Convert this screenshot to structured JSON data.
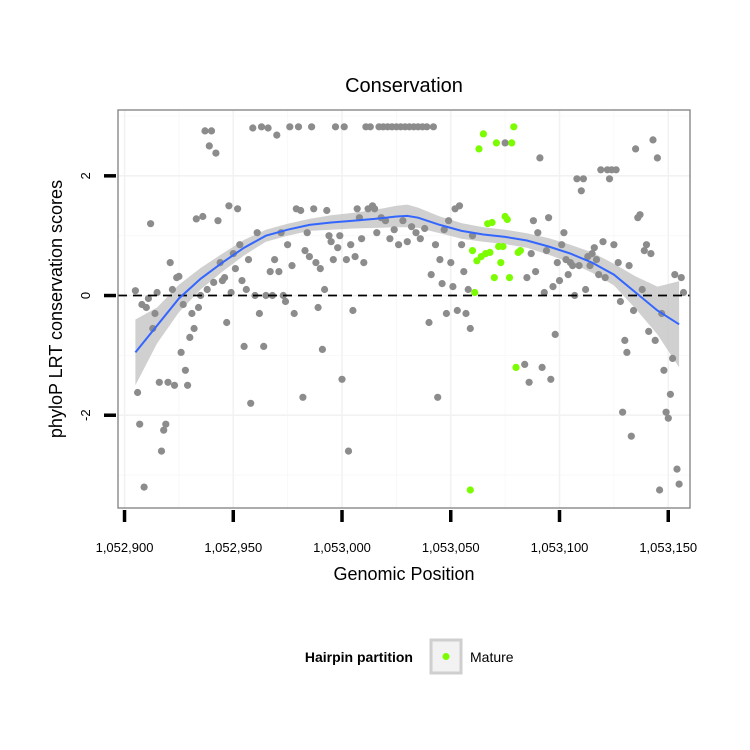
{
  "chart_data": {
    "type": "scatter",
    "title": "Conservation",
    "xlabel": "Genomic Position",
    "ylabel": "phyloP LRT conservation scores",
    "xlim": [
      1052897,
      1053160
    ],
    "ylim": [
      -3.55,
      3.1
    ],
    "x_ticks": [
      1052900,
      1052950,
      1053000,
      1053050,
      1053100,
      1053150
    ],
    "x_tick_labels": [
      "1,052,900",
      "1,052,950",
      "1,053,000",
      "1,053,050",
      "1,053,100",
      "1,053,150"
    ],
    "y_ticks": [
      -2,
      0,
      2
    ],
    "y_tick_labels": [
      "-2",
      "0",
      "2"
    ],
    "grid": true,
    "reference_line": {
      "y": 0,
      "style": "dashed",
      "color": "#000000"
    },
    "legend": {
      "title": "Hairpin partition",
      "placement": "bottom",
      "entries": [
        {
          "label": "Mature",
          "color": "#7CFC00"
        }
      ]
    },
    "colors": {
      "other": "#8c8c8c",
      "mature": "#7CFC00",
      "smooth": "#3366FF",
      "ribbon": "#c8c8c8"
    },
    "series": [
      {
        "name": "Mature",
        "color": "#7CFC00",
        "points": [
          [
            1053059,
            -3.25
          ],
          [
            1053060,
            0.75
          ],
          [
            1053061,
            0.05
          ],
          [
            1053062,
            0.58
          ],
          [
            1053063,
            2.45
          ],
          [
            1053064,
            0.65
          ],
          [
            1053065,
            2.7
          ],
          [
            1053066,
            0.7
          ],
          [
            1053067,
            1.2
          ],
          [
            1053068,
            0.72
          ],
          [
            1053069,
            1.22
          ],
          [
            1053070,
            0.3
          ],
          [
            1053071,
            2.55
          ],
          [
            1053072,
            0.82
          ],
          [
            1053073,
            0.55
          ],
          [
            1053074,
            0.82
          ],
          [
            1053075,
            1.32
          ],
          [
            1053076,
            1.27
          ],
          [
            1053077,
            0.3
          ],
          [
            1053078,
            2.55
          ],
          [
            1053079,
            2.82
          ],
          [
            1053080,
            -1.2
          ],
          [
            1053081,
            0.72
          ],
          [
            1053082,
            0.75
          ]
        ]
      },
      {
        "color": "#8c8c8c",
        "points": [
          [
            1052905,
            0.08
          ],
          [
            1052906,
            -1.62
          ],
          [
            1052907,
            -2.15
          ],
          [
            1052908,
            -0.15
          ],
          [
            1052909,
            -3.2
          ],
          [
            1052910,
            -0.2
          ],
          [
            1052911,
            -0.05
          ],
          [
            1052912,
            1.2
          ],
          [
            1052913,
            -0.55
          ],
          [
            1052914,
            -0.3
          ],
          [
            1052915,
            0.05
          ],
          [
            1052916,
            -1.45
          ],
          [
            1052917,
            -2.6
          ],
          [
            1052918,
            -2.25
          ],
          [
            1052919,
            -2.15
          ],
          [
            1052920,
            -1.45
          ],
          [
            1052921,
            0.55
          ],
          [
            1052922,
            0.1
          ],
          [
            1052923,
            -1.5
          ],
          [
            1052924,
            0.3
          ],
          [
            1052925,
            0.32
          ],
          [
            1052926,
            -0.95
          ],
          [
            1052927,
            -0.15
          ],
          [
            1052928,
            -1.25
          ],
          [
            1052929,
            -1.5
          ],
          [
            1052930,
            -0.7
          ],
          [
            1052931,
            -0.3
          ],
          [
            1052932,
            -0.55
          ],
          [
            1052933,
            1.28
          ],
          [
            1052934,
            -0.2
          ],
          [
            1052935,
            0.0
          ],
          [
            1052936,
            1.32
          ],
          [
            1052937,
            2.75
          ],
          [
            1052938,
            0.1
          ],
          [
            1052939,
            2.5
          ],
          [
            1052940,
            2.75
          ],
          [
            1052941,
            0.22
          ],
          [
            1052942,
            2.38
          ],
          [
            1052943,
            1.25
          ],
          [
            1052944,
            0.55
          ],
          [
            1052945,
            0.25
          ],
          [
            1052946,
            0.3
          ],
          [
            1052947,
            -0.45
          ],
          [
            1052948,
            1.5
          ],
          [
            1052949,
            0.05
          ],
          [
            1052950,
            0.7
          ],
          [
            1052951,
            0.45
          ],
          [
            1052952,
            1.45
          ],
          [
            1052953,
            0.85
          ],
          [
            1052954,
            0.25
          ],
          [
            1052955,
            -0.85
          ],
          [
            1052956,
            0.1
          ],
          [
            1052957,
            0.6
          ],
          [
            1052958,
            -1.8
          ],
          [
            1052959,
            2.8
          ],
          [
            1052960,
            0.0
          ],
          [
            1052961,
            1.05
          ],
          [
            1052962,
            -0.3
          ],
          [
            1052963,
            2.82
          ],
          [
            1052964,
            -0.85
          ],
          [
            1052965,
            0.0
          ],
          [
            1052966,
            2.8
          ],
          [
            1052967,
            0.4
          ],
          [
            1052968,
            0.0
          ],
          [
            1052969,
            0.6
          ],
          [
            1052970,
            2.68
          ],
          [
            1052971,
            0.4
          ],
          [
            1052972,
            1.05
          ],
          [
            1052973,
            0.0
          ],
          [
            1052974,
            -0.1
          ],
          [
            1052975,
            0.85
          ],
          [
            1052976,
            2.82
          ],
          [
            1052977,
            0.5
          ],
          [
            1052978,
            -0.3
          ],
          [
            1052979,
            1.45
          ],
          [
            1052980,
            2.82
          ],
          [
            1052981,
            1.42
          ],
          [
            1052982,
            -1.7
          ],
          [
            1052983,
            0.75
          ],
          [
            1052984,
            1.05
          ],
          [
            1052985,
            0.65
          ],
          [
            1052986,
            2.82
          ],
          [
            1052987,
            1.45
          ],
          [
            1052988,
            0.55
          ],
          [
            1052989,
            -0.2
          ],
          [
            1052990,
            0.45
          ],
          [
            1052991,
            -0.9
          ],
          [
            1052992,
            0.1
          ],
          [
            1052993,
            1.42
          ],
          [
            1052994,
            1.0
          ],
          [
            1052995,
            0.9
          ],
          [
            1052996,
            0.6
          ],
          [
            1052997,
            2.82
          ],
          [
            1052998,
            0.8
          ],
          [
            1052999,
            1.0
          ],
          [
            1053000,
            -1.4
          ],
          [
            1053001,
            2.82
          ],
          [
            1053002,
            0.6
          ],
          [
            1053003,
            -2.6
          ],
          [
            1053004,
            0.85
          ],
          [
            1053005,
            -0.25
          ],
          [
            1053006,
            0.65
          ],
          [
            1053007,
            1.45
          ],
          [
            1053008,
            1.3
          ],
          [
            1053009,
            0.95
          ],
          [
            1053010,
            0.55
          ],
          [
            1053011,
            2.82
          ],
          [
            1053012,
            1.45
          ],
          [
            1053013,
            2.82
          ],
          [
            1053014,
            1.5
          ],
          [
            1053015,
            1.45
          ],
          [
            1053016,
            1.05
          ],
          [
            1053017,
            2.82
          ],
          [
            1053018,
            1.3
          ],
          [
            1053019,
            2.82
          ],
          [
            1053020,
            1.25
          ],
          [
            1053021,
            2.82
          ],
          [
            1053022,
            0.95
          ],
          [
            1053023,
            2.82
          ],
          [
            1053024,
            1.1
          ],
          [
            1053025,
            2.82
          ],
          [
            1053026,
            0.85
          ],
          [
            1053027,
            2.82
          ],
          [
            1053028,
            1.25
          ],
          [
            1053029,
            2.82
          ],
          [
            1053030,
            0.9
          ],
          [
            1053031,
            2.82
          ],
          [
            1053032,
            1.15
          ],
          [
            1053033,
            2.82
          ],
          [
            1053034,
            1.05
          ],
          [
            1053035,
            2.82
          ],
          [
            1053036,
            0.95
          ],
          [
            1053037,
            2.82
          ],
          [
            1053038,
            1.12
          ],
          [
            1053039,
            2.82
          ],
          [
            1053040,
            -0.45
          ],
          [
            1053041,
            0.35
          ],
          [
            1053042,
            2.82
          ],
          [
            1053043,
            0.85
          ],
          [
            1053044,
            -1.7
          ],
          [
            1053045,
            0.6
          ],
          [
            1053046,
            0.2
          ],
          [
            1053047,
            1.1
          ],
          [
            1053048,
            -0.3
          ],
          [
            1053049,
            1.25
          ],
          [
            1053050,
            0.55
          ],
          [
            1053051,
            0.15
          ],
          [
            1053052,
            1.45
          ],
          [
            1053053,
            -0.25
          ],
          [
            1053054,
            1.5
          ],
          [
            1053055,
            0.85
          ],
          [
            1053056,
            0.4
          ],
          [
            1053057,
            -0.3
          ],
          [
            1053058,
            0.1
          ],
          [
            1053059,
            -0.55
          ],
          [
            1053060,
            1.0
          ],
          [
            1053075,
            2.55
          ],
          [
            1053084,
            -1.15
          ],
          [
            1053085,
            0.3
          ],
          [
            1053086,
            -1.45
          ],
          [
            1053087,
            0.7
          ],
          [
            1053088,
            1.25
          ],
          [
            1053089,
            0.4
          ],
          [
            1053090,
            1.05
          ],
          [
            1053091,
            2.3
          ],
          [
            1053092,
            -1.2
          ],
          [
            1053093,
            0.05
          ],
          [
            1053094,
            0.75
          ],
          [
            1053095,
            1.3
          ],
          [
            1053096,
            -1.4
          ],
          [
            1053097,
            0.15
          ],
          [
            1053098,
            -0.65
          ],
          [
            1053099,
            0.55
          ],
          [
            1053100,
            0.25
          ],
          [
            1053101,
            0.85
          ],
          [
            1053102,
            1.05
          ],
          [
            1053103,
            0.6
          ],
          [
            1053104,
            0.35
          ],
          [
            1053105,
            0.55
          ],
          [
            1053106,
            0.5
          ],
          [
            1053107,
            0.0
          ],
          [
            1053108,
            1.95
          ],
          [
            1053109,
            0.5
          ],
          [
            1053110,
            1.75
          ],
          [
            1053111,
            1.95
          ],
          [
            1053112,
            0.1
          ],
          [
            1053113,
            0.65
          ],
          [
            1053114,
            0.5
          ],
          [
            1053115,
            0.7
          ],
          [
            1053116,
            0.8
          ],
          [
            1053117,
            0.6
          ],
          [
            1053118,
            0.35
          ],
          [
            1053119,
            2.1
          ],
          [
            1053120,
            0.9
          ],
          [
            1053121,
            0.3
          ],
          [
            1053122,
            2.1
          ],
          [
            1053123,
            1.95
          ],
          [
            1053124,
            2.1
          ],
          [
            1053125,
            0.85
          ],
          [
            1053126,
            2.1
          ],
          [
            1053127,
            0.55
          ],
          [
            1053128,
            -0.1
          ],
          [
            1053129,
            -1.95
          ],
          [
            1053130,
            -0.75
          ],
          [
            1053131,
            -0.95
          ],
          [
            1053132,
            0.5
          ],
          [
            1053133,
            -2.35
          ],
          [
            1053134,
            -0.25
          ],
          [
            1053135,
            2.45
          ],
          [
            1053136,
            1.3
          ],
          [
            1053137,
            1.35
          ],
          [
            1053138,
            0.1
          ],
          [
            1053139,
            0.75
          ],
          [
            1053140,
            0.85
          ],
          [
            1053141,
            -0.6
          ],
          [
            1053142,
            0.7
          ],
          [
            1053143,
            2.6
          ],
          [
            1053144,
            -0.75
          ],
          [
            1053145,
            2.3
          ],
          [
            1053146,
            -3.25
          ],
          [
            1053147,
            -0.3
          ],
          [
            1053148,
            -1.25
          ],
          [
            1053149,
            -1.95
          ],
          [
            1053150,
            -2.05
          ],
          [
            1053151,
            -1.65
          ],
          [
            1053152,
            -1.05
          ],
          [
            1053153,
            0.35
          ],
          [
            1053154,
            -2.9
          ],
          [
            1053155,
            -3.15
          ],
          [
            1053156,
            0.3
          ],
          [
            1053157,
            0.05
          ]
        ]
      }
    ],
    "smooth": {
      "color": "#3366FF",
      "x": [
        1052905,
        1052915,
        1052925,
        1052935,
        1052945,
        1052955,
        1052965,
        1052975,
        1052985,
        1052995,
        1053005,
        1053015,
        1053025,
        1053030,
        1053035,
        1053045,
        1053055,
        1053065,
        1053075,
        1053085,
        1053095,
        1053105,
        1053115,
        1053125,
        1053135,
        1053145,
        1053155
      ],
      "y": [
        -0.95,
        -0.5,
        -0.05,
        0.28,
        0.55,
        0.8,
        1.0,
        1.1,
        1.18,
        1.22,
        1.25,
        1.28,
        1.32,
        1.33,
        1.3,
        1.18,
        1.08,
        1.02,
        0.98,
        0.92,
        0.82,
        0.7,
        0.55,
        0.35,
        0.05,
        -0.25,
        -0.48
      ],
      "lower": [
        -1.5,
        -0.8,
        -0.28,
        0.1,
        0.4,
        0.67,
        0.9,
        1.0,
        1.08,
        1.1,
        1.12,
        1.13,
        1.14,
        1.14,
        1.13,
        1.04,
        0.95,
        0.9,
        0.86,
        0.8,
        0.68,
        0.55,
        0.38,
        0.17,
        -0.22,
        -0.65,
        -1.2
      ],
      "upper": [
        -0.4,
        -0.2,
        0.18,
        0.46,
        0.7,
        0.93,
        1.1,
        1.2,
        1.28,
        1.34,
        1.38,
        1.43,
        1.5,
        1.52,
        1.47,
        1.32,
        1.21,
        1.14,
        1.1,
        1.04,
        0.96,
        0.85,
        0.72,
        0.53,
        0.32,
        0.15,
        0.24
      ]
    }
  }
}
